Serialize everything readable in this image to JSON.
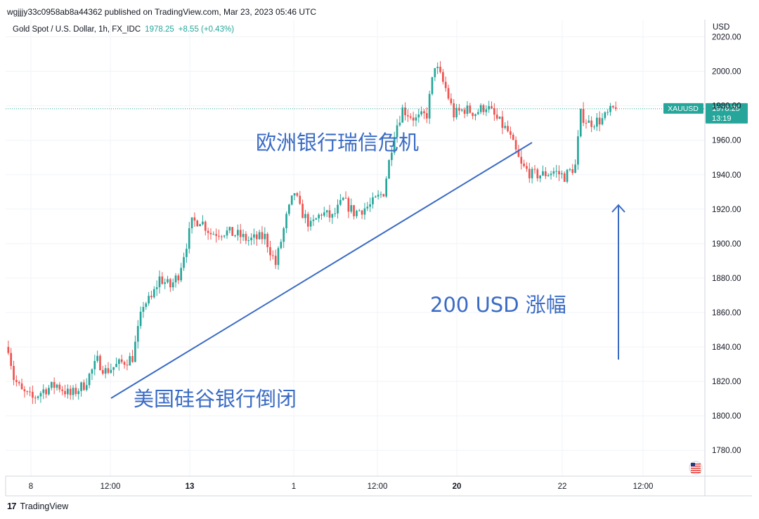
{
  "header": {
    "publisher_line": "wgjjjy33c0958ab8a44362 published on TradingView.com, Mar 23, 2023 05:46 UTC"
  },
  "symbol": {
    "description": "Gold Spot / U.S. Dollar, 1h, FX_IDC",
    "last": "1978.25",
    "change": "+8.55 (+0.43%)"
  },
  "price_tag": {
    "ticker": "XAUUSD",
    "price": "1978.25",
    "countdown": "13:19"
  },
  "footer": {
    "brand": "TradingView",
    "logo": "17"
  },
  "colors": {
    "up": "#26a69a",
    "down": "#ef5350",
    "annotation": "#3a6bc4",
    "grid": "#f0f3fa",
    "axis_text": "#131722"
  },
  "chart_data": {
    "type": "candlestick",
    "title": "Gold Spot / U.S. Dollar, 1h, FX_IDC",
    "y_axis_unit": "USD",
    "ylim": [
      1765,
      2030
    ],
    "y_ticks": [
      1780,
      1800,
      1820,
      1840,
      1860,
      1880,
      1900,
      1920,
      1940,
      1960,
      1980,
      2000,
      2020
    ],
    "y_tick_labels": [
      "1780.00",
      "1800.00",
      "1820.00",
      "1840.00",
      "1860.00",
      "1880.00",
      "1900.00",
      "1920.00",
      "1940.00",
      "1960.00",
      "1980.00",
      "2000.00",
      "2020.00"
    ],
    "x_tick_labels": [
      "8",
      "12:00",
      "13",
      "1",
      "12:00",
      "20",
      "22",
      "12:00"
    ],
    "x_tick_bold": [
      false,
      false,
      true,
      false,
      false,
      true,
      false,
      false
    ],
    "grid": true,
    "price_line": 1978.25,
    "close_path": [
      [
        0,
        1840
      ],
      [
        2,
        1822
      ],
      [
        5,
        1814
      ],
      [
        9,
        1810
      ],
      [
        13,
        1815
      ],
      [
        18,
        1818
      ],
      [
        23,
        1812
      ],
      [
        28,
        1818
      ],
      [
        33,
        1832
      ],
      [
        36,
        1826
      ],
      [
        41,
        1830
      ],
      [
        46,
        1834
      ],
      [
        50,
        1865
      ],
      [
        53,
        1868
      ],
      [
        56,
        1880
      ],
      [
        60,
        1875
      ],
      [
        63,
        1882
      ],
      [
        66,
        1900
      ],
      [
        68,
        1912
      ],
      [
        71,
        1914
      ],
      [
        75,
        1906
      ],
      [
        80,
        1907
      ],
      [
        85,
        1905
      ],
      [
        89,
        1902
      ],
      [
        95,
        1904
      ],
      [
        99,
        1888
      ],
      [
        103,
        1915
      ],
      [
        106,
        1930
      ],
      [
        108,
        1920
      ],
      [
        112,
        1910
      ],
      [
        116,
        1918
      ],
      [
        120,
        1915
      ],
      [
        124,
        1925
      ],
      [
        128,
        1918
      ],
      [
        134,
        1922
      ],
      [
        139,
        1930
      ],
      [
        143,
        1965
      ],
      [
        146,
        1978
      ],
      [
        151,
        1972
      ],
      [
        155,
        1975
      ],
      [
        158,
        2004
      ],
      [
        162,
        1990
      ],
      [
        165,
        1975
      ],
      [
        169,
        1978
      ],
      [
        173,
        1976
      ],
      [
        177,
        1980
      ],
      [
        181,
        1972
      ],
      [
        185,
        1965
      ],
      [
        190,
        1945
      ],
      [
        194,
        1940
      ],
      [
        198,
        1940
      ],
      [
        202,
        1942
      ],
      [
        206,
        1939
      ],
      [
        210,
        1945
      ],
      [
        212,
        1975
      ],
      [
        215,
        1970
      ],
      [
        220,
        1972
      ],
      [
        224,
        1978
      ]
    ],
    "annotations": [
      {
        "text": "欧洲银行瑞信危机"
      },
      {
        "text": "美国硅谷银行倒闭"
      },
      {
        "text": "200 USD 涨幅"
      }
    ]
  }
}
